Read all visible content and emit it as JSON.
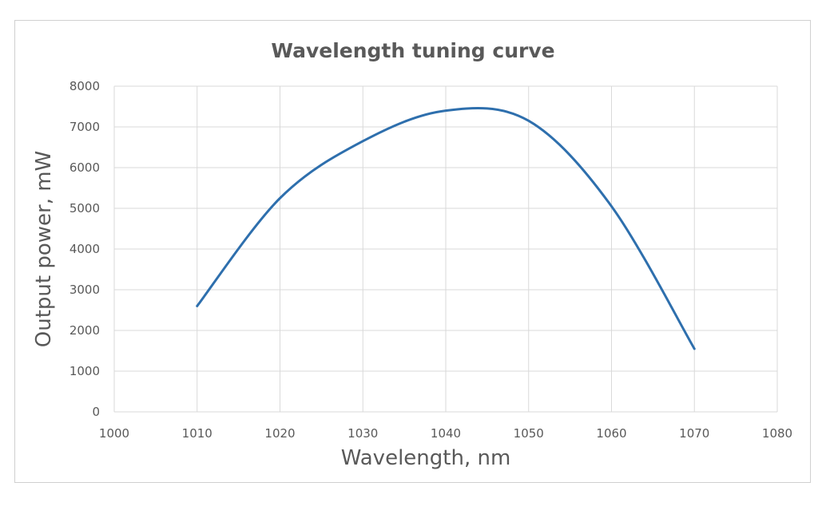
{
  "chart_data": {
    "type": "line",
    "title": "Wavelength tuning curve",
    "xlabel": "Wavelength, nm",
    "ylabel": "Output power, mW",
    "xlim": [
      1000,
      1080
    ],
    "ylim": [
      0,
      8000
    ],
    "x_ticks": [
      "1000",
      "1010",
      "1020",
      "1030",
      "1040",
      "1050",
      "1060",
      "1070",
      "1080"
    ],
    "y_ticks": [
      "0",
      "1000",
      "2000",
      "3000",
      "4000",
      "5000",
      "6000",
      "7000",
      "8000"
    ],
    "grid": true,
    "legend": "none",
    "smooth": true,
    "series": [
      {
        "color": "#2e6fad",
        "points": [
          [
            1010,
            2600
          ],
          [
            1020,
            5250
          ],
          [
            1030,
            6650
          ],
          [
            1040,
            7400
          ],
          [
            1050,
            7150
          ],
          [
            1060,
            5050
          ],
          [
            1070,
            1550
          ]
        ]
      }
    ]
  }
}
